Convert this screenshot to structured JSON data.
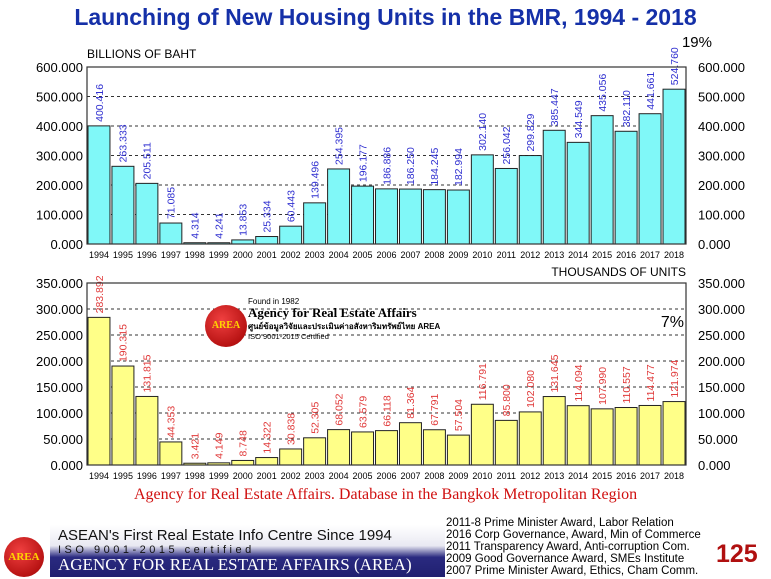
{
  "title": "Launching of New Housing Units in the BMR, 1994 - 2018",
  "caption": "Agency for Real Estate Affairs. Database in the Bangkok Metropolitan Region",
  "logo": {
    "text": "AREA",
    "founded": "Found in 1982",
    "name": "Agency for Real Estate Affairs",
    "thai": "ศูนย์ข้อมูลวิจัยและประเมินค่าอสังหาริมทรัพย์ไทย AREA",
    "iso": "ISO 9001-2015 Certified"
  },
  "footer": {
    "logo_text": "AREA",
    "line1": "ASEAN's First Real Estate Info Centre Since 1994",
    "line2": "ISO 9001-2015 certified",
    "line3": "AGENCY FOR REAL ESTATE AFFAIRS (AREA)",
    "awards": [
      "2011-8 Prime Minister Award, Labor Relation",
      "2016 Corp Governance, Award, Min of Commerce",
      "2011 Transparency Award, Anti-corruption Com.",
      "2009 Good Governance Award, SMEs Institute",
      "2007 Prime Minister Award, Ethics, Cham Comm."
    ],
    "page_number": "125"
  },
  "chart_data": [
    {
      "type": "bar",
      "ylabel": "BILLIONS OF BAHT",
      "annotation": "19%",
      "ylim": [
        0,
        600
      ],
      "yticks": [
        "0.000",
        "100.000",
        "200.000",
        "300.000",
        "400.000",
        "500.000",
        "600.000"
      ],
      "grid": true,
      "bar_color": "#80f8f8",
      "label_color": "#3030d0",
      "categories": [
        "1994",
        "1995",
        "1996",
        "1997",
        "1998",
        "1999",
        "2000",
        "2001",
        "2002",
        "2003",
        "2004",
        "2005",
        "2006",
        "2007",
        "2008",
        "2009",
        "2010",
        "2011",
        "2012",
        "2013",
        "2014",
        "2015",
        "2016",
        "2017",
        "2018"
      ],
      "values": [
        400.416,
        263.333,
        205.511,
        71.085,
        4.314,
        4.241,
        13.853,
        25.334,
        60.443,
        139.496,
        254.395,
        196.177,
        186.886,
        186.25,
        184.245,
        182.994,
        302.14,
        256.042,
        299.829,
        385.447,
        344.549,
        435.056,
        382.11,
        441.661,
        524.76
      ],
      "labels": [
        "400.416",
        "263.333",
        "205.511",
        "71.085",
        "4.314",
        "4.241",
        "13.853",
        "25.334",
        "60.443",
        "139.496",
        "254.395",
        "196.177",
        "186.886",
        "186.250",
        "184.245",
        "182.994",
        "302.140",
        "256.042",
        "299.829",
        "385.447",
        "344.549",
        "435.056",
        "382.110",
        "441.661",
        "524.760"
      ]
    },
    {
      "type": "bar",
      "ylabel": "THOUSANDS OF UNITS",
      "annotation": "7%",
      "ylim": [
        0,
        350
      ],
      "yticks": [
        "0.000",
        "50.000",
        "100.000",
        "150.000",
        "200.000",
        "250.000",
        "300.000",
        "350.000"
      ],
      "grid": true,
      "bar_color": "#ffff88",
      "label_color": "#e03a3a",
      "categories": [
        "1994",
        "1995",
        "1996",
        "1997",
        "1998",
        "1999",
        "2000",
        "2001",
        "2002",
        "2003",
        "2004",
        "2005",
        "2006",
        "2007",
        "2008",
        "2009",
        "2010",
        "2011",
        "2012",
        "2013",
        "2014",
        "2015",
        "2016",
        "2017",
        "2018"
      ],
      "values": [
        283.892,
        190.315,
        131.815,
        44.353,
        3.421,
        4.149,
        8.748,
        14.322,
        30.838,
        52.305,
        68.052,
        63.579,
        66.118,
        81.364,
        67.791,
        57.504,
        116.791,
        85.8,
        102.08,
        131.645,
        114.094,
        107.99,
        110.557,
        114.477,
        121.974
      ],
      "labels": [
        "283.892",
        "190.315",
        "131.815",
        "44.353",
        "3.421",
        "4.149",
        "8.748",
        "14.322",
        "30.838",
        "52.305",
        "68.052",
        "63.579",
        "66.118",
        "81.364",
        "67.791",
        "57.504",
        "116.791",
        "85.800",
        "102.080",
        "131.645",
        "114.094",
        "107.990",
        "110.557",
        "114.477",
        "121.974"
      ]
    }
  ]
}
